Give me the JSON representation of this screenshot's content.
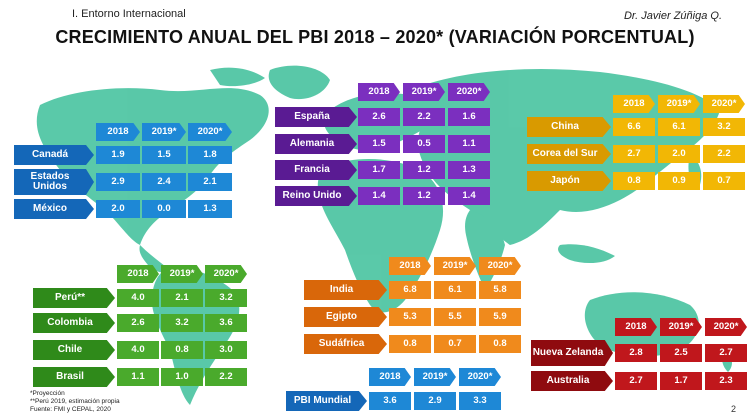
{
  "header": {
    "section": "I. Entorno Internacional",
    "author": "Dr. Javier Zúñiga Q.",
    "title": "CRECIMIENTO ANUAL DEL PBI 2018 – 2020* (VARIACIÓN PORCENTUAL)"
  },
  "colors": {
    "blue": "#1e88d6",
    "blue_dark": "#1467b8",
    "purple": "#7b2fbf",
    "purple_dark": "#5a1b93",
    "yellow": "#f2b705",
    "yellow_dark": "#d99a00",
    "green": "#4aaa2c",
    "green_dark": "#2f8a1a",
    "orange": "#f08a1c",
    "orange_dark": "#d9670a",
    "red": "#c0171c",
    "red_dark": "#8f0b0f",
    "map": "#3dbf9a"
  },
  "years": [
    "2018",
    "2019*",
    "2020*"
  ],
  "regions": {
    "north_america": {
      "rows": [
        {
          "country": "Canadá",
          "values": [
            "1.9",
            "1.5",
            "1.8"
          ]
        },
        {
          "country": "Estados Unidos",
          "values": [
            "2.9",
            "2.4",
            "2.1"
          ]
        },
        {
          "country": "México",
          "values": [
            "2.0",
            "0.0",
            "1.3"
          ]
        }
      ]
    },
    "europe": {
      "rows": [
        {
          "country": "España",
          "values": [
            "2.6",
            "2.2",
            "1.6"
          ]
        },
        {
          "country": "Alemania",
          "values": [
            "1.5",
            "0.5",
            "1.1"
          ]
        },
        {
          "country": "Francia",
          "values": [
            "1.7",
            "1.2",
            "1.3"
          ]
        },
        {
          "country": "Reino Unido",
          "values": [
            "1.4",
            "1.2",
            "1.4"
          ]
        }
      ]
    },
    "asia": {
      "rows": [
        {
          "country": "China",
          "values": [
            "6.6",
            "6.1",
            "3.2"
          ]
        },
        {
          "country": "Corea del Sur",
          "values": [
            "2.7",
            "2.0",
            "2.2"
          ]
        },
        {
          "country": "Japón",
          "values": [
            "0.8",
            "0.9",
            "0.7"
          ]
        }
      ]
    },
    "south_america": {
      "rows": [
        {
          "country": "Perú**",
          "values": [
            "4.0",
            "2.1",
            "3.2"
          ]
        },
        {
          "country": "Colombia",
          "values": [
            "2.6",
            "3.2",
            "3.6"
          ]
        },
        {
          "country": "Chile",
          "values": [
            "4.0",
            "0.8",
            "3.0"
          ]
        },
        {
          "country": "Brasil",
          "values": [
            "1.1",
            "1.0",
            "2.2"
          ]
        }
      ]
    },
    "middle": {
      "rows": [
        {
          "country": "India",
          "values": [
            "6.8",
            "6.1",
            "5.8"
          ]
        },
        {
          "country": "Egipto",
          "values": [
            "5.3",
            "5.5",
            "5.9"
          ]
        },
        {
          "country": "Sudáfrica",
          "values": [
            "0.8",
            "0.7",
            "0.8"
          ]
        }
      ]
    },
    "oceania": {
      "rows": [
        {
          "country": "Nueva Zelanda",
          "values": [
            "2.8",
            "2.5",
            "2.7"
          ]
        },
        {
          "country": "Australia",
          "values": [
            "2.7",
            "1.7",
            "2.3"
          ]
        }
      ]
    },
    "world": {
      "rows": [
        {
          "country": "PBI Mundial",
          "values": [
            "3.6",
            "2.9",
            "3.3"
          ]
        }
      ]
    }
  },
  "footnotes": {
    "line1": "*Proyección",
    "line2": "**Perú 2019, estimación propia",
    "line3": "Fuente: FMI y CEPAL, 2020"
  },
  "page_number": "2"
}
